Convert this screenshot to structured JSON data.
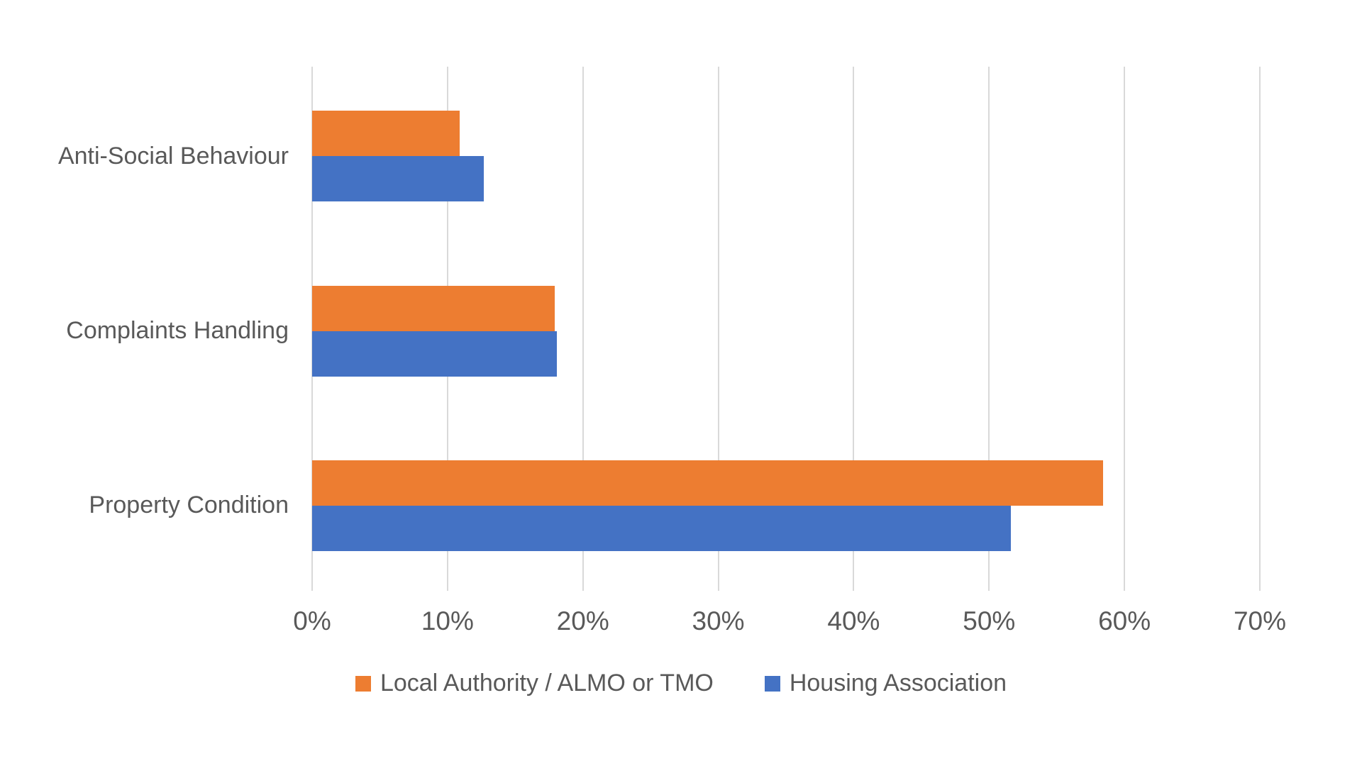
{
  "colors": {
    "series_local_authority": "#ED7D31",
    "series_housing_association": "#4472C4",
    "gridline": "#D9D9D9",
    "axis_text": "#595959",
    "background": "#FFFFFF"
  },
  "chart_data": {
    "type": "bar",
    "orientation": "horizontal",
    "title": "",
    "categories": [
      "Anti-Social Behaviour",
      "Complaints Handling",
      "Property Condition"
    ],
    "series": [
      {
        "name": "Local Authority / ALMO or TMO",
        "color": "#ED7D31",
        "values": [
          10.9,
          17.9,
          58.4
        ]
      },
      {
        "name": "Housing Association",
        "color": "#4472C4",
        "values": [
          12.7,
          18.1,
          51.6
        ]
      }
    ],
    "x_axis": {
      "unit": "%",
      "min": 0,
      "max": 70,
      "tick_step": 10,
      "tick_labels": [
        "0%",
        "10%",
        "20%",
        "30%",
        "40%",
        "50%",
        "60%",
        "70%"
      ]
    },
    "grid": true,
    "legend_position": "bottom",
    "legend_entries": [
      "Local Authority / ALMO or TMO",
      "Housing Association"
    ]
  }
}
